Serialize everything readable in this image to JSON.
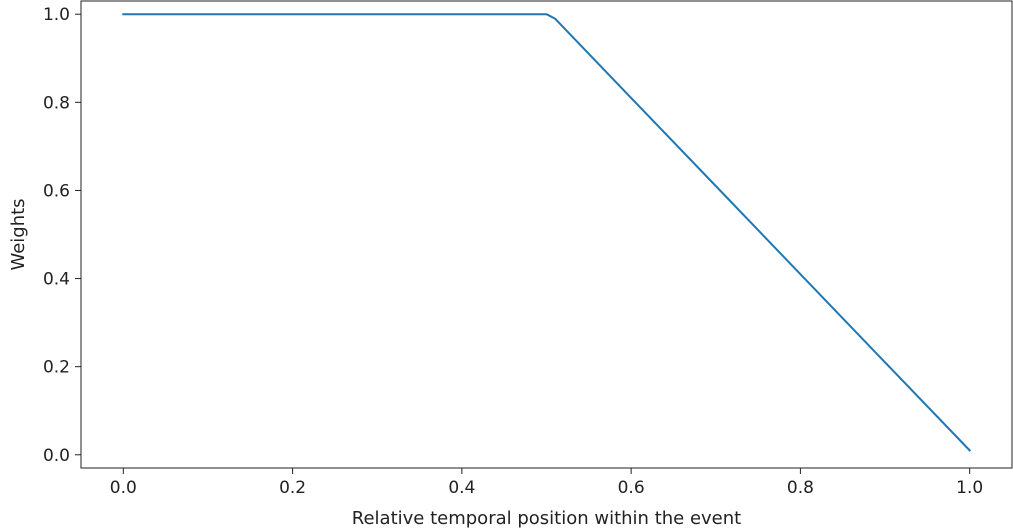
{
  "chart_data": {
    "type": "line",
    "title": "",
    "xlabel": "Relative temporal position within the event",
    "ylabel": "Weights",
    "xlim": [
      -0.05,
      1.05
    ],
    "ylim": [
      -0.03,
      1.03
    ],
    "xticks": [
      0.0,
      0.2,
      0.4,
      0.6,
      0.8,
      1.0
    ],
    "xtick_labels": [
      "0.0",
      "0.2",
      "0.4",
      "0.6",
      "0.8",
      "1.0"
    ],
    "yticks": [
      0.0,
      0.2,
      0.4,
      0.6,
      0.8,
      1.0
    ],
    "ytick_labels": [
      "0.0",
      "0.2",
      "0.4",
      "0.6",
      "0.8",
      "1.0"
    ],
    "grid": false,
    "legend": "none",
    "series": [
      {
        "color": "#1f77b4",
        "x": [
          0.0,
          0.1,
          0.2,
          0.3,
          0.4,
          0.49,
          0.5,
          0.51,
          0.6,
          0.7,
          0.8,
          0.9,
          1.0
        ],
        "y": [
          1.0,
          1.0,
          1.0,
          1.0,
          1.0,
          1.0,
          1.0,
          0.99,
          0.81,
          0.61,
          0.41,
          0.21,
          0.01
        ]
      }
    ]
  }
}
